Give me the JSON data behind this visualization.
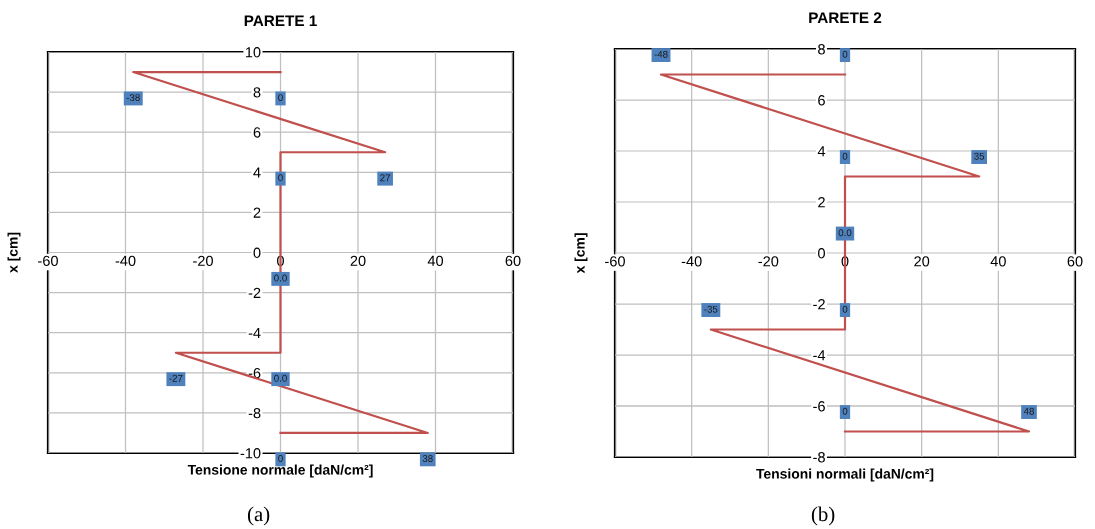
{
  "chart_data": [
    {
      "type": "line",
      "title": "PARETE 1",
      "xlabel": "Tensione normale [daN/cm²]",
      "ylabel": "x [cm]",
      "annotations": [
        "(a)",
        {
          "text": "0",
          "x": 0,
          "y": 9
        },
        {
          "text": "-38",
          "x": -38,
          "y": 9
        },
        {
          "text": "27",
          "x": 27,
          "y": 5
        },
        {
          "text": "0",
          "x": 0,
          "y": 5
        },
        {
          "text": "0.0",
          "x": 0,
          "y": 0
        },
        {
          "text": "0.0",
          "x": 0,
          "y": -5
        },
        {
          "text": "-27",
          "x": -27,
          "y": -5
        },
        {
          "text": "38",
          "x": 38,
          "y": -9
        },
        {
          "text": "0",
          "x": 0,
          "y": -9
        }
      ],
      "xlim": [
        -60,
        60
      ],
      "xticks": [
        -60,
        -40,
        -20,
        0,
        20,
        40,
        60
      ],
      "ylim": [
        -10,
        10
      ],
      "yticks": [
        -10,
        -8,
        -6,
        -4,
        -2,
        0,
        2,
        4,
        6,
        8,
        10
      ],
      "grid": true,
      "series": [
        {
          "color": "#c0504d",
          "x": [
            0,
            -38,
            27,
            0,
            0,
            0,
            -27,
            38,
            0
          ],
          "values": [
            9,
            9,
            5,
            5,
            0,
            -5,
            -5,
            -9,
            -9
          ]
        }
      ]
    },
    {
      "type": "line",
      "title": "PARETE 2",
      "xlabel": "Tensioni normali [daN/cm²]",
      "ylabel": "x [cm]",
      "annotations": [
        "(b)",
        {
          "text": "0",
          "x": 0,
          "y": 7
        },
        {
          "text": "-48",
          "x": -48,
          "y": 7
        },
        {
          "text": "35",
          "x": 35,
          "y": 3
        },
        {
          "text": "0",
          "x": 0,
          "y": 3
        },
        {
          "text": "0.0",
          "x": 0,
          "y": 0
        },
        {
          "text": "0",
          "x": 0,
          "y": -3
        },
        {
          "text": "-35",
          "x": -35,
          "y": -3
        },
        {
          "text": "48",
          "x": 48,
          "y": -7
        },
        {
          "text": "0",
          "x": 0,
          "y": -7
        }
      ],
      "xlim": [
        -60,
        60
      ],
      "xticks": [
        -60,
        -40,
        -20,
        0,
        20,
        40,
        60
      ],
      "ylim": [
        -8,
        8
      ],
      "yticks": [
        -8,
        -6,
        -4,
        -2,
        0,
        2,
        4,
        6,
        8
      ],
      "grid": true,
      "series": [
        {
          "color": "#c0504d",
          "x": [
            0,
            -48,
            35,
            0,
            0,
            0,
            -35,
            48,
            0
          ],
          "values": [
            7,
            7,
            3,
            3,
            0,
            -3,
            -3,
            -7,
            -7
          ]
        }
      ]
    }
  ]
}
